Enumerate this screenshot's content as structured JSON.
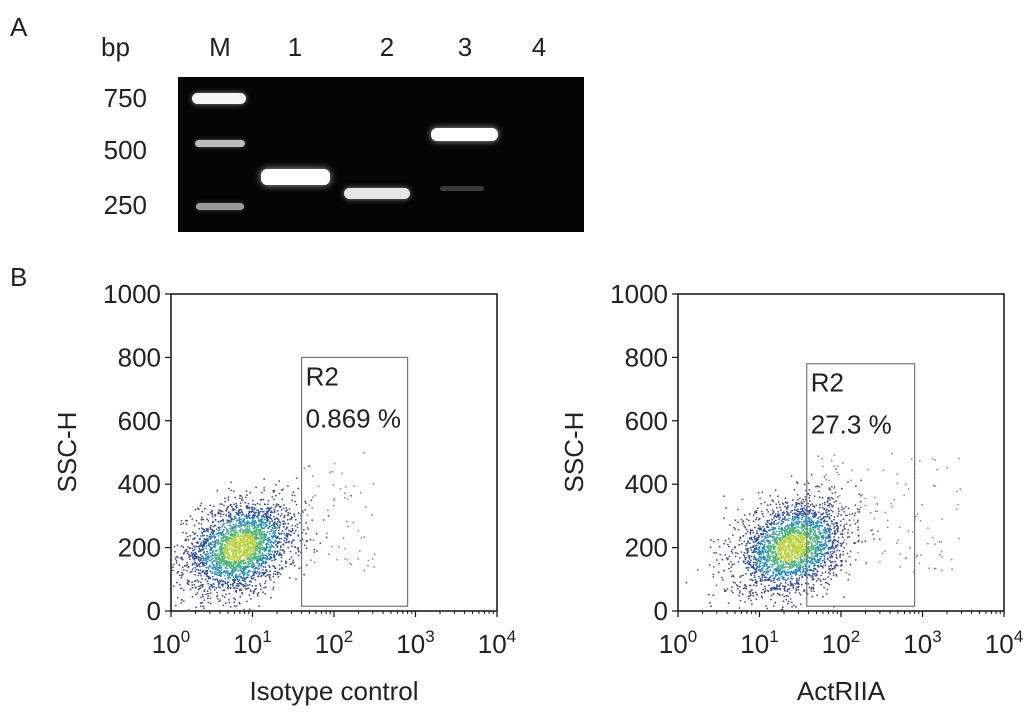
{
  "panel_a": {
    "label": "A",
    "bp_title": "bp",
    "lanes": [
      "M",
      "1",
      "2",
      "3",
      "4"
    ],
    "bp_markers": [
      "750",
      "500",
      "250"
    ],
    "colors": {
      "gel_background": "#050505",
      "band": "#ffffff"
    }
  },
  "panel_b": {
    "label": "B"
  },
  "chart_data": [
    {
      "type": "scatter",
      "title": "",
      "xlabel": "Isotype control",
      "ylabel": "SSC-H",
      "x_scale": "log",
      "xlim": [
        1,
        10000
      ],
      "ylim": [
        0,
        1000
      ],
      "x_ticks": [
        "10^0",
        "10^1",
        "10^2",
        "10^3",
        "10^4"
      ],
      "y_ticks": [
        "0",
        "200",
        "400",
        "600",
        "800",
        "1000"
      ],
      "gate": {
        "name": "R2",
        "percent_text": "0.869 %",
        "x_range": [
          40,
          800
        ],
        "y_range": [
          15,
          800
        ]
      },
      "population_center": {
        "x": 7,
        "y": 200
      }
    },
    {
      "type": "scatter",
      "title": "",
      "xlabel": "ActRIIA",
      "ylabel": "SSC-H",
      "x_scale": "log",
      "xlim": [
        1,
        10000
      ],
      "ylim": [
        0,
        1000
      ],
      "x_ticks": [
        "10^0",
        "10^1",
        "10^2",
        "10^3",
        "10^4"
      ],
      "y_ticks": [
        "0",
        "200",
        "400",
        "600",
        "800",
        "1000"
      ],
      "gate": {
        "name": "R2",
        "percent_text": "27.3 %",
        "x_range": [
          38,
          800
        ],
        "y_range": [
          15,
          780
        ]
      },
      "population_center": {
        "x": 25,
        "y": 200
      }
    }
  ]
}
